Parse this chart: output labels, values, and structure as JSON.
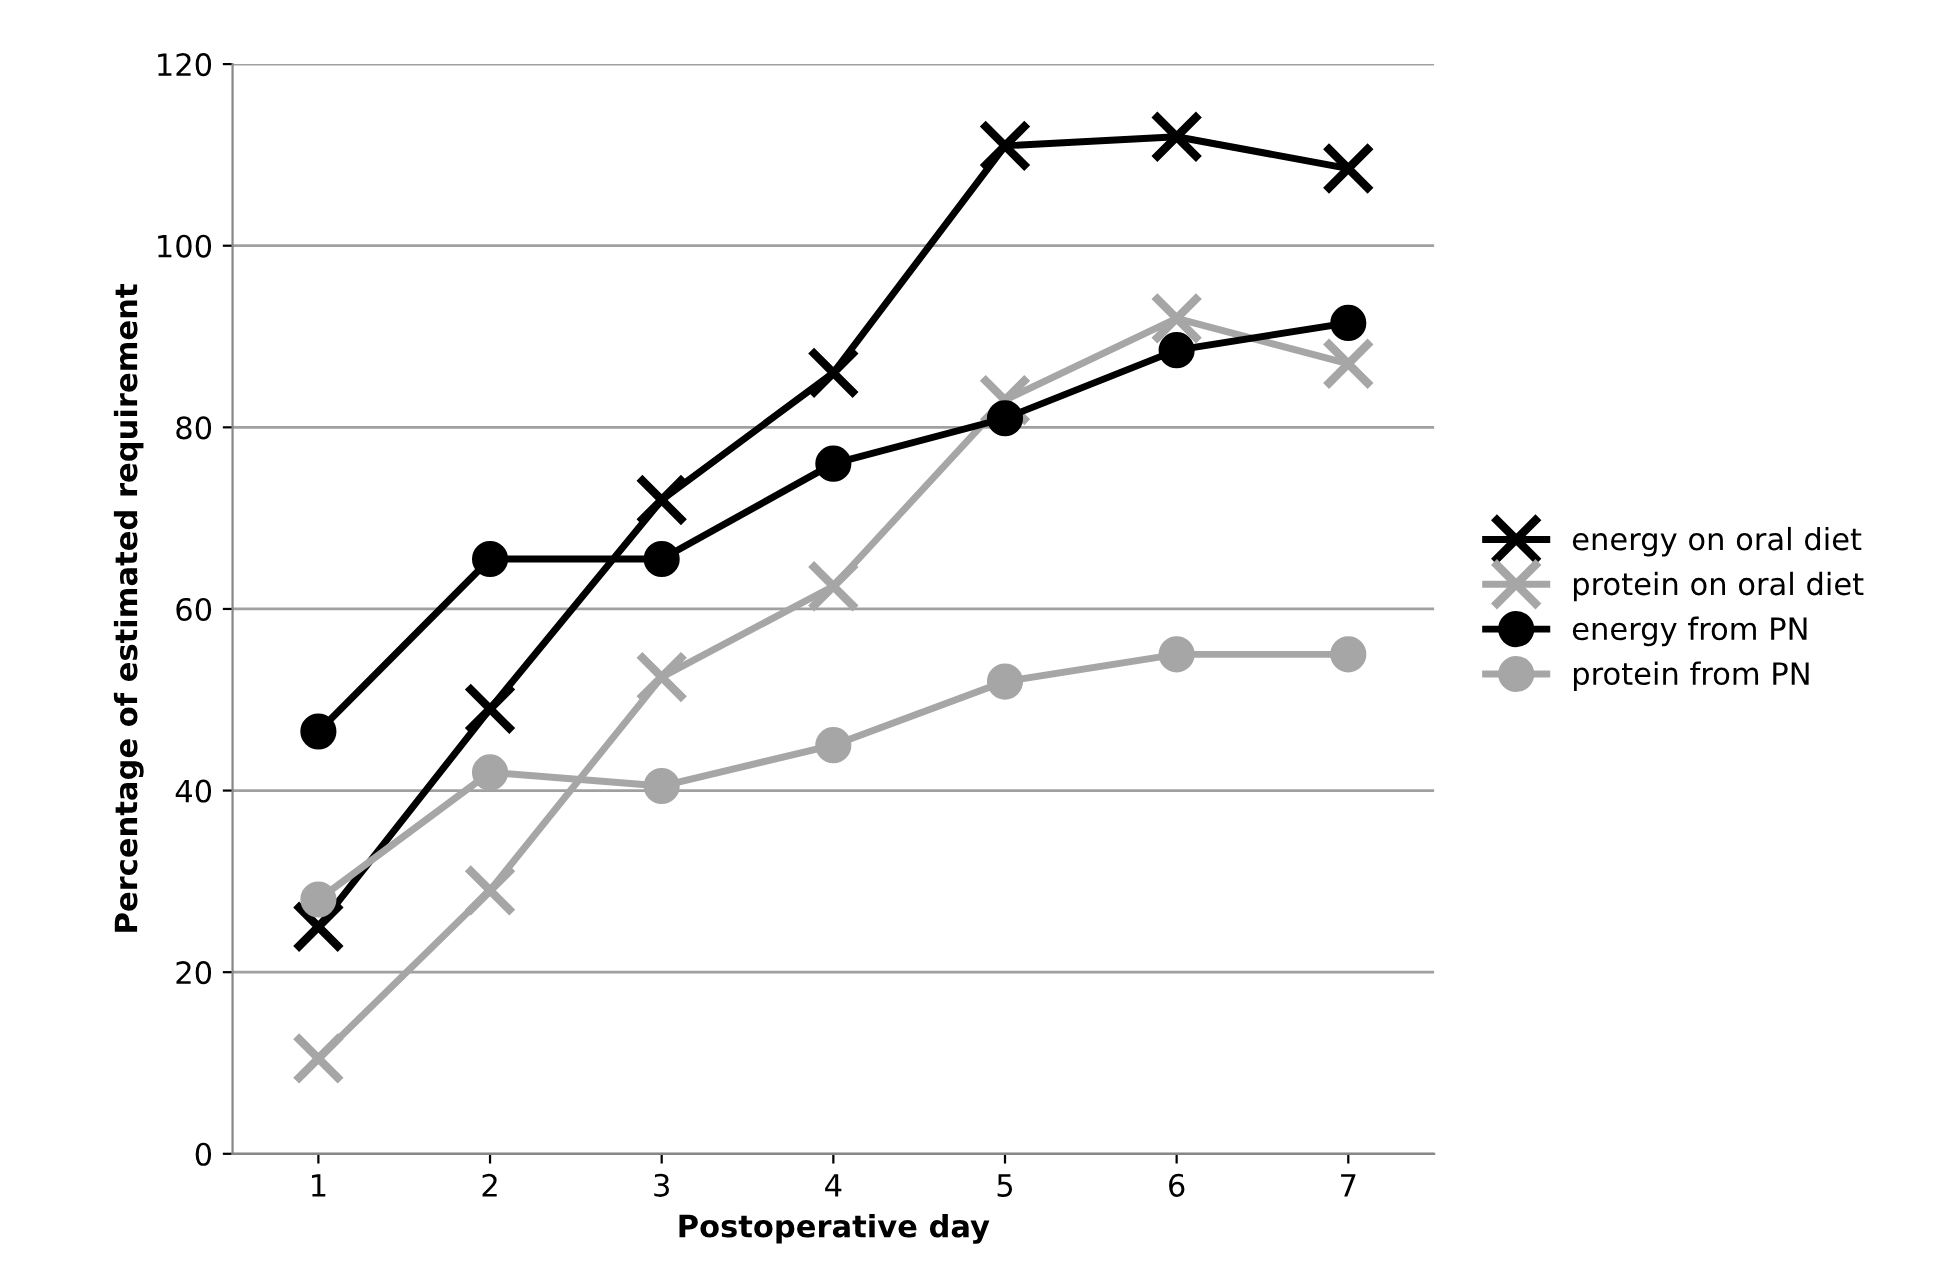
{
  "chart_data": {
    "type": "line",
    "xlabel": "Postoperative day",
    "ylabel": "Percentage of estimated requirement",
    "categories": [
      "1",
      "2",
      "3",
      "4",
      "5",
      "6",
      "7"
    ],
    "series": [
      {
        "name": "energy on oral diet",
        "color": "#000000",
        "marker": "cross",
        "values": [
          25,
          49,
          72,
          86,
          111,
          112,
          108.5
        ]
      },
      {
        "name": "protein on oral diet",
        "color": "#a6a6a6",
        "marker": "cross",
        "values": [
          10.5,
          29,
          52.5,
          62.5,
          83,
          92,
          87
        ]
      },
      {
        "name": "energy from PN",
        "color": "#000000",
        "marker": "circle",
        "values": [
          46.5,
          65.5,
          65.5,
          76,
          81,
          88.5,
          91.5
        ]
      },
      {
        "name": "protein from PN",
        "color": "#a6a6a6",
        "marker": "circle",
        "values": [
          28,
          42,
          40.5,
          45,
          52,
          55,
          55
        ]
      }
    ],
    "ylim": [
      0,
      120
    ],
    "yticks": [
      0,
      20,
      40,
      60,
      80,
      100,
      120
    ],
    "grid": "y",
    "legend": "right",
    "line_style": "solid"
  }
}
